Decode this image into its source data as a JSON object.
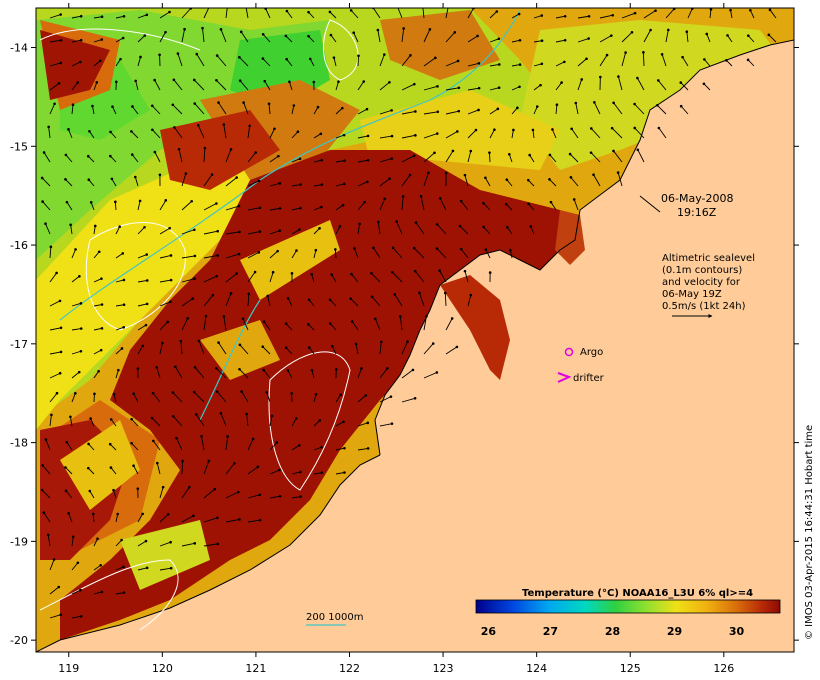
{
  "map": {
    "lon_ticks": [
      "119",
      "120",
      "121",
      "122",
      "123",
      "124",
      "125",
      "126"
    ],
    "lat_ticks": [
      "-14",
      "-15",
      "-16",
      "-17",
      "-18",
      "-19",
      "-20"
    ],
    "lon_range": [
      118.65,
      126.75
    ],
    "lat_range": [
      -20.12,
      -13.6
    ]
  },
  "annotations": {
    "date": "06-May-2008",
    "time": "19:16Z",
    "legend_lines": [
      "Altimetric sealevel",
      "(0.1m contours)",
      "and velocity for",
      "06-May 19Z",
      "0.5m/s (1kt 24h)"
    ],
    "argo_label": "Argo",
    "drifter_label": "drifter",
    "depth_label": "200  1000m"
  },
  "colorbar": {
    "title": "Temperature (°C) NOAA16_L3U 6% ql>=4",
    "ticks": [
      "26",
      "27",
      "28",
      "29",
      "30"
    ],
    "range": [
      25.8,
      30.7
    ]
  },
  "credit": "© IMOS 03-Apr-2015 16:44:31 Hobart time",
  "colors": {
    "land": "#ffcc99",
    "sst_hot": "#9e1204",
    "sst_warm": "#d86c0c",
    "sst_mid": "#e0a80e",
    "sst_yellow": "#f0e016",
    "sst_green": "#90e030",
    "sst_dgreen": "#2fd030",
    "contour_white": "#ffffff",
    "bathy_cyan": "#3fc6c6",
    "argo": "#e000e0",
    "drifter": "#e000e0"
  },
  "icons": {
    "argo": "circle-marker-icon",
    "drifter": "chevron-marker-icon",
    "scale_arrow": "arrow-right-icon"
  }
}
